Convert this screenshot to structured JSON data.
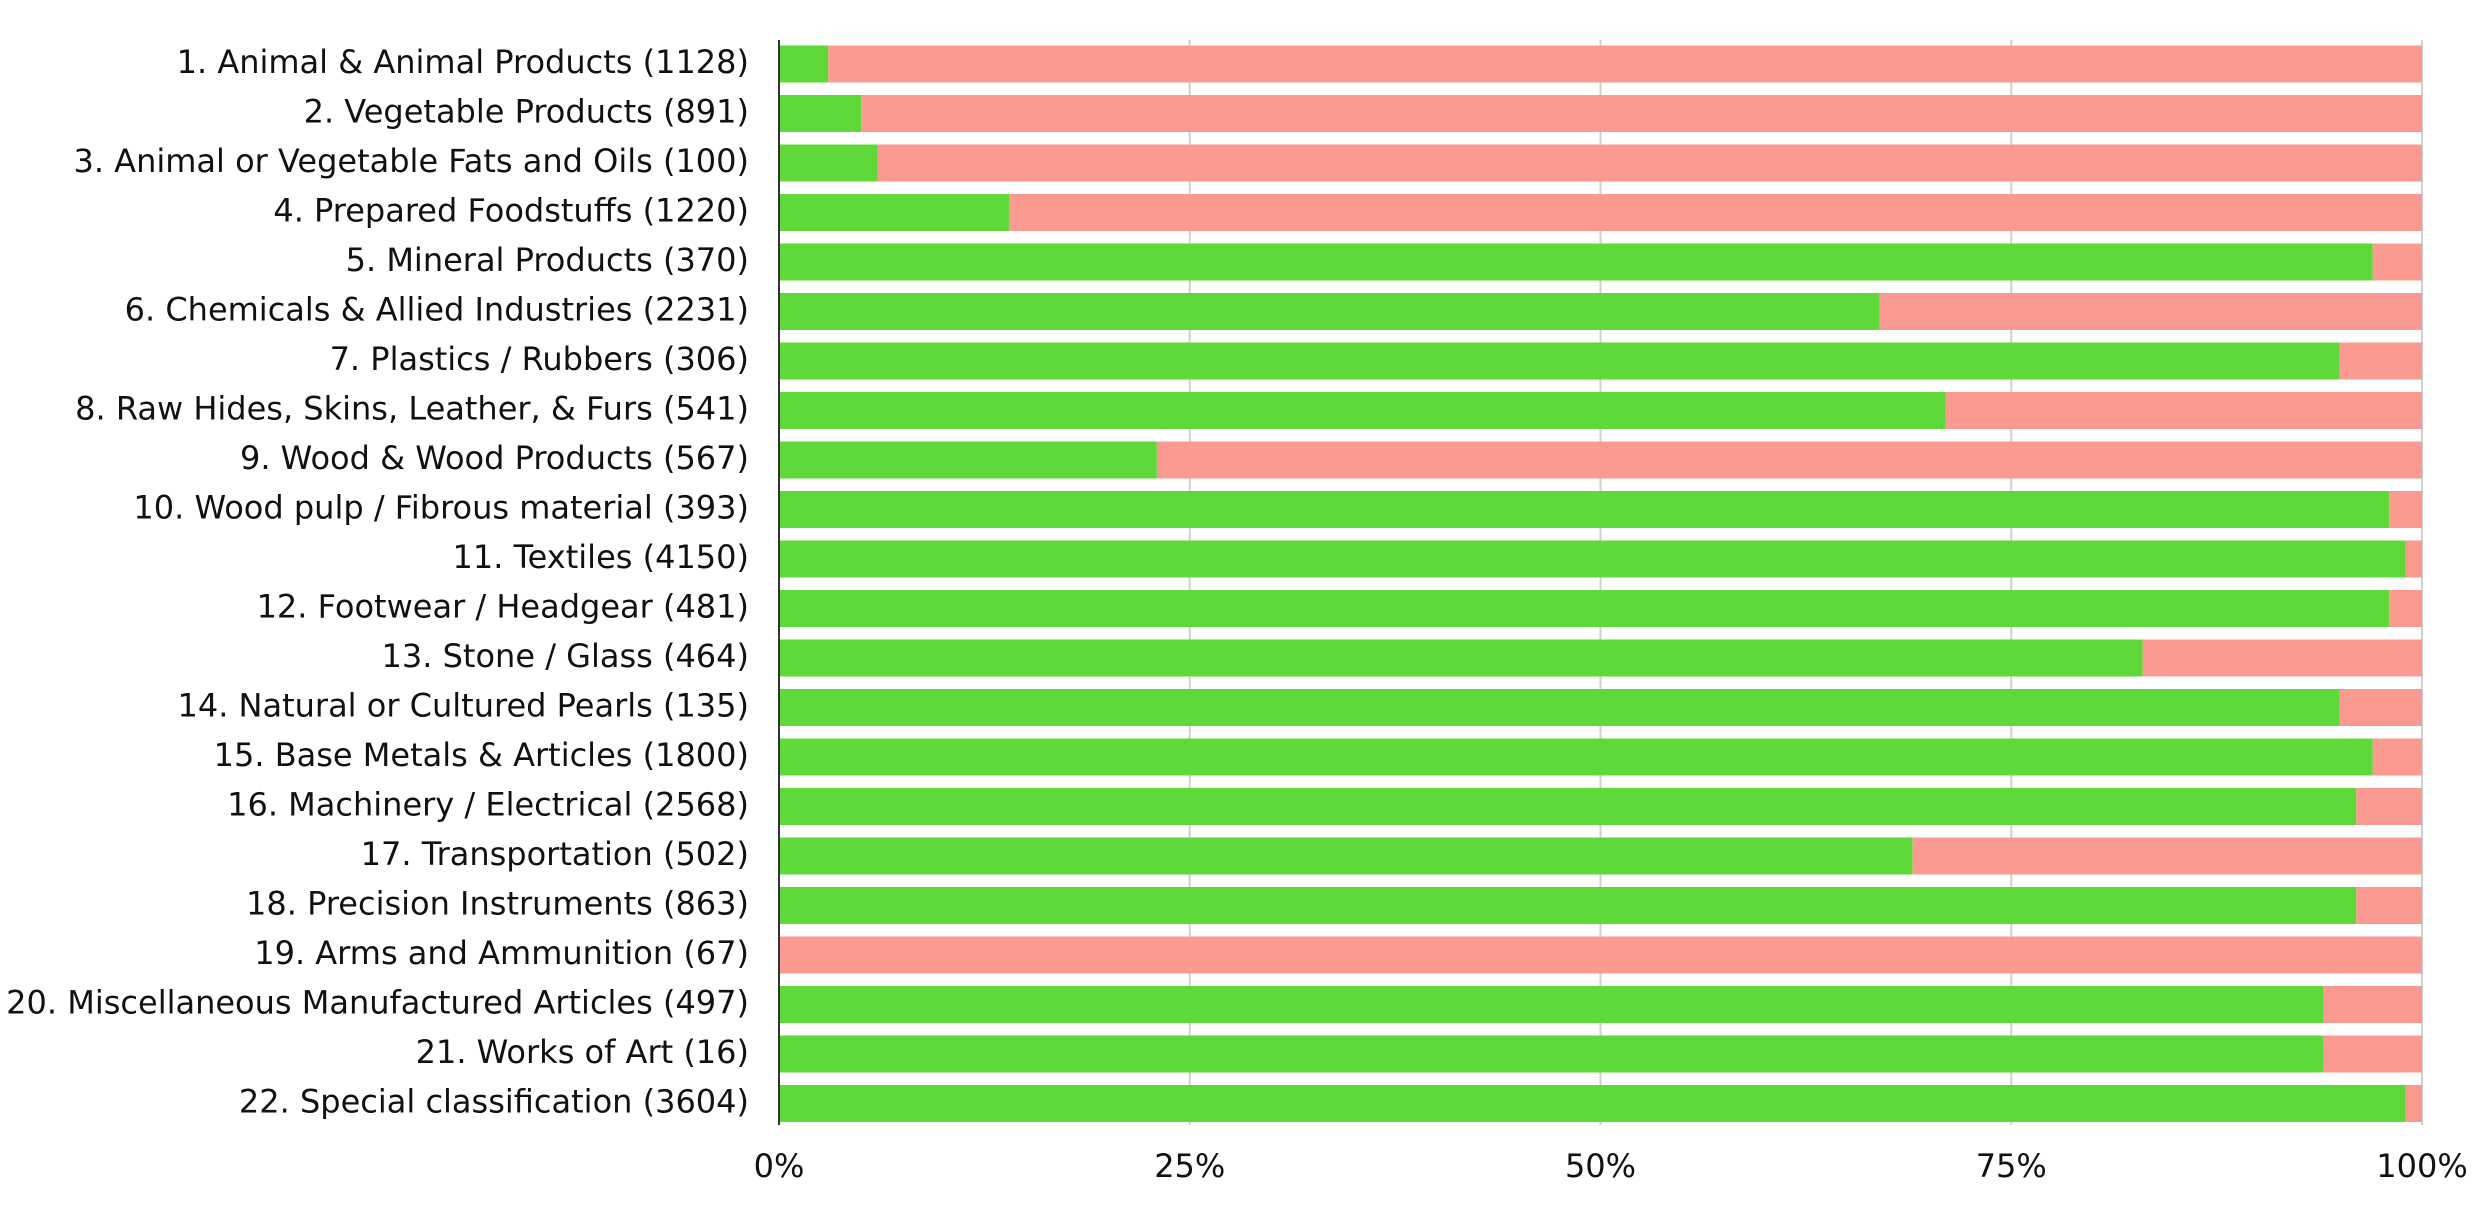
{
  "chart_data": {
    "type": "bar",
    "orientation": "horizontal",
    "stacked": true,
    "normalized": true,
    "title": "",
    "xlabel": "",
    "ylabel": "",
    "xlim": [
      0,
      100
    ],
    "x_ticks": [
      0,
      25,
      50,
      75,
      100
    ],
    "x_tick_labels": [
      "0%",
      "25%",
      "50%",
      "75%",
      "100%"
    ],
    "grid": true,
    "legend": "none",
    "categories": [
      "1. Animal & Animal Products (1128)",
      "2. Vegetable Products (891)",
      "3. Animal or Vegetable Fats and Oils (100)",
      "4. Prepared Foodstuffs (1220)",
      "5. Mineral Products (370)",
      "6. Chemicals & Allied Industries (2231)",
      "7. Plastics / Rubbers (306)",
      "8. Raw Hides, Skins, Leather, & Furs (541)",
      "9. Wood & Wood Products (567)",
      "10. Wood pulp / Fibrous material (393)",
      "11. Textiles (4150)",
      "12. Footwear / Headgear (481)",
      "13. Stone / Glass (464)",
      "14. Natural or Cultured Pearls (135)",
      "15. Base Metals & Articles (1800)",
      "16. Machinery / Electrical (2568)",
      "17. Transportation (502)",
      "18. Precision Instruments (863)",
      "19. Arms and Ammunition (67)",
      "20. Miscellaneous Manufactured Articles (497)",
      "21. Works of Art (16)",
      "22.  Special classification (3604)"
    ],
    "series": [
      {
        "color": "#5fd93a",
        "values": [
          3,
          5,
          6,
          14,
          97,
          67,
          95,
          71,
          23,
          98,
          99,
          98,
          83,
          95,
          97,
          96,
          69,
          96,
          0,
          94,
          94,
          99
        ]
      },
      {
        "color": "#fa9a91",
        "values": [
          97,
          95,
          94,
          86,
          3,
          33,
          5,
          29,
          77,
          2,
          1,
          2,
          17,
          5,
          3,
          4,
          31,
          4,
          100,
          6,
          6,
          1
        ]
      }
    ],
    "colors": {
      "grid": "#d0d0d0",
      "axis": "#333333",
      "text": "#111111"
    }
  }
}
